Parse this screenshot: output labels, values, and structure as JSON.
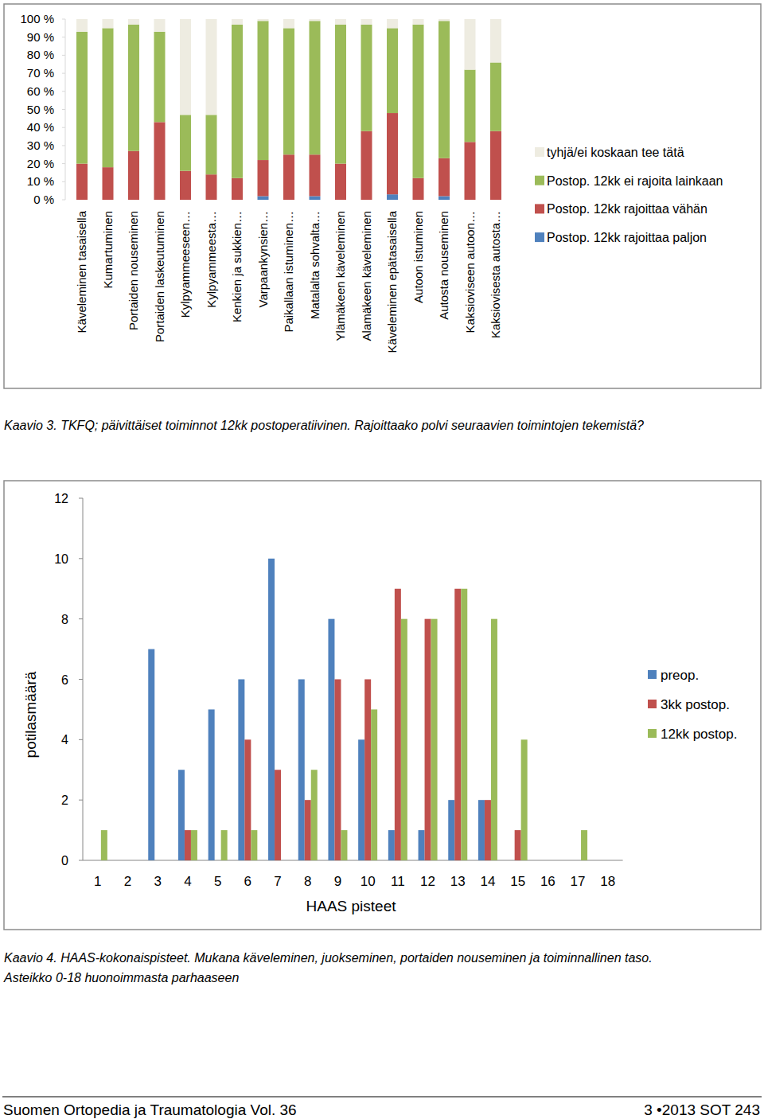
{
  "chart_data": [
    {
      "type": "bar",
      "stacked": true,
      "legend": "right",
      "categories": [
        "Käveleminen tasaisella",
        "Kumartuminen",
        "Portaiden nouseminen",
        "Portaiden laskeutuminen",
        "Kylpyammeeseen…",
        "Kylpyammeesta…",
        "Kenkien ja sukkien…",
        "Varpaankynsien…",
        "Paikallaan istuminen…",
        "Matalalta sohvalta…",
        "Ylämäkeen käveleminen",
        "Alamäkeen käveleminen",
        "Käveleminen epätasaisella",
        "Autoon istuminen",
        "Autosta nouseminen",
        "Kaksioviseen autoon…",
        "Kaksiovisesta autosta…"
      ],
      "series": [
        {
          "name": "Postop. 12kk rajoittaa paljon",
          "color": "#4f81bd",
          "values": [
            0,
            0,
            0,
            0,
            0,
            0,
            0,
            2,
            0,
            2,
            0,
            0,
            3,
            0,
            2,
            0,
            0
          ]
        },
        {
          "name": "Postop. 12kk rajoittaa vähän",
          "color": "#c0504d",
          "values": [
            20,
            18,
            27,
            43,
            16,
            14,
            12,
            20,
            25,
            23,
            20,
            38,
            45,
            12,
            21,
            32,
            38
          ]
        },
        {
          "name": "Postop. 12kk ei rajoita lainkaan",
          "color": "#9bbb59",
          "values": [
            73,
            77,
            70,
            50,
            31,
            33,
            85,
            77,
            70,
            74,
            77,
            59,
            47,
            85,
            76,
            40,
            38
          ]
        },
        {
          "name": "tyhjä/ei koskaan tee tätä",
          "color": "#eeece1",
          "values": [
            7,
            5,
            3,
            7,
            53,
            53,
            3,
            1,
            5,
            1,
            3,
            3,
            5,
            3,
            1,
            28,
            24
          ]
        }
      ],
      "ylim": [
        0,
        100
      ],
      "yticks": [
        {
          "value": 0,
          "label": "0 %"
        },
        {
          "value": 10,
          "label": "10 %"
        },
        {
          "value": 20,
          "label": "20 %"
        },
        {
          "value": 30,
          "label": "30 %"
        },
        {
          "value": 40,
          "label": "40 %"
        },
        {
          "value": 50,
          "label": "50 %"
        },
        {
          "value": 60,
          "label": "60 %"
        },
        {
          "value": 70,
          "label": "70 %"
        },
        {
          "value": 80,
          "label": "80 %"
        },
        {
          "value": 90,
          "label": "90 %"
        },
        {
          "value": 100,
          "label": "100 %"
        }
      ],
      "grid": false
    },
    {
      "type": "bar",
      "legend": "right",
      "x_label": "HAAS pisteet",
      "y_label": "potilasmäärä",
      "categories": [
        "1",
        "2",
        "3",
        "4",
        "5",
        "6",
        "7",
        "8",
        "9",
        "10",
        "11",
        "12",
        "13",
        "14",
        "15",
        "16",
        "17",
        "18"
      ],
      "series": [
        {
          "name": "preop.",
          "color": "#4f81bd",
          "values": [
            0,
            0,
            7,
            3,
            5,
            6,
            10,
            6,
            8,
            4,
            1,
            1,
            2,
            2,
            0,
            0,
            0,
            0
          ]
        },
        {
          "name": "3kk postop.",
          "color": "#c0504d",
          "values": [
            0,
            0,
            0,
            1,
            0,
            4,
            3,
            2,
            6,
            6,
            9,
            8,
            9,
            2,
            1,
            0,
            0,
            0
          ]
        },
        {
          "name": "12kk postop.",
          "color": "#9bbb59",
          "values": [
            1,
            0,
            0,
            1,
            1,
            1,
            0,
            3,
            1,
            5,
            8,
            8,
            9,
            8,
            4,
            0,
            1,
            0
          ]
        }
      ],
      "ylim": [
        0,
        12
      ],
      "yticks": [
        0,
        2,
        4,
        6,
        8,
        10,
        12
      ],
      "grid": false
    }
  ],
  "page": {
    "caption3": "Kaavio 3. TKFQ; päivittäiset toiminnot 12kk postoperatiivinen. Rajoittaako polvi seuraavien toimintojen tekemistä?",
    "caption4": [
      "Kaavio 4. HAAS-kokonaispisteet. Mukana käveleminen, juokseminen, portaiden nouseminen ja toiminnallinen taso.",
      "Asteikko 0-18 huonoimmasta parhaaseen"
    ],
    "footer_left": "Suomen Ortopedia ja Traumatologia Vol. 36",
    "footer_right": "3 •2013 SOT 243"
  }
}
